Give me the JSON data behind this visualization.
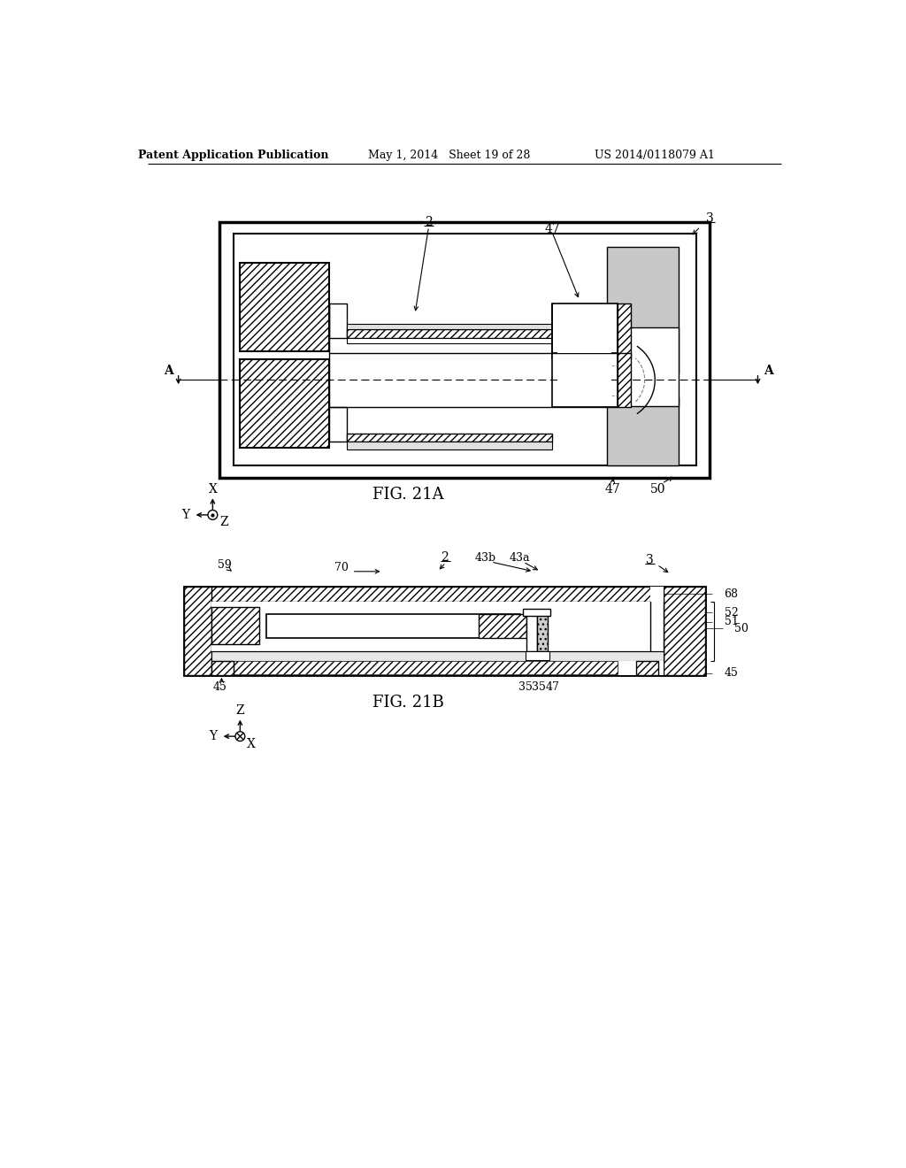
{
  "title_left": "Patent Application Publication",
  "title_mid": "May 1, 2014   Sheet 19 of 28",
  "title_right": "US 2014/0118079 A1",
  "fig_label_A": "FIG. 21A",
  "fig_label_B": "FIG. 21B",
  "bg": "#ffffff"
}
